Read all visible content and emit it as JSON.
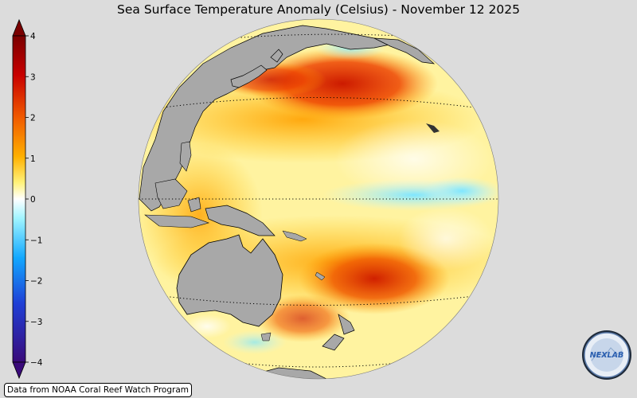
{
  "title": "Sea Surface Temperature Anomaly (Celsius) - November 12 2025",
  "colorbar": {
    "ticks": [
      "4",
      "3",
      "2",
      "1",
      "0",
      "−1",
      "−2",
      "−3",
      "−4"
    ],
    "min": -4,
    "max": 4,
    "colors": [
      "#3a0a7a",
      "#1f3fd6",
      "#12a8ff",
      "#9ff4ff",
      "#ffffff",
      "#fff27a",
      "#ffb000",
      "#f05a00",
      "#c80000",
      "#7a0000"
    ]
  },
  "map": {
    "projection": "orthographic",
    "center": "central Pacific",
    "ocean_color": "#fff6b0",
    "land_color": "#a8a8a8"
  },
  "credit": "Data from NOAA Coral Reef Watch Program",
  "logo": {
    "text": "NEXLAB",
    "icon": "nexlab-logo-icon"
  }
}
